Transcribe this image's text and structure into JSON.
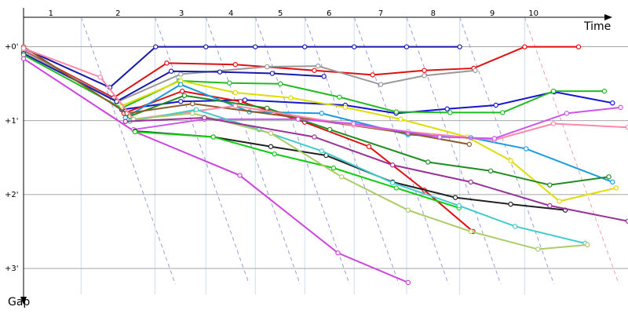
{
  "chart_data": {
    "type": "line",
    "x_label": "Time",
    "y_label": "Gap",
    "xlim": [
      0,
      8.19
    ],
    "ylim": [
      -0.4,
      3.51
    ],
    "xticks": [
      {
        "value": 0.37,
        "label": "1"
      },
      {
        "value": 1.28,
        "label": "2"
      },
      {
        "value": 2.14,
        "label": "3"
      },
      {
        "value": 2.81,
        "label": "4"
      },
      {
        "value": 3.48,
        "label": "5"
      },
      {
        "value": 4.14,
        "label": "6"
      },
      {
        "value": 4.84,
        "label": "7"
      },
      {
        "value": 5.55,
        "label": "8"
      },
      {
        "value": 6.35,
        "label": "9"
      },
      {
        "value": 6.91,
        "label": "10"
      }
    ],
    "xgrid": [
      0.78,
      1.78,
      2.47,
      3.14,
      3.81,
      4.48,
      5.19,
      5.91,
      6.79
    ],
    "yticks": [
      {
        "value": 0,
        "label": "+0'"
      },
      {
        "value": 1,
        "label": "+1'"
      },
      {
        "value": 2,
        "label": "+2'"
      },
      {
        "value": 3,
        "label": "+3'"
      }
    ],
    "grid": true,
    "series": [
      {
        "color": "#1a1aaa",
        "x": [
          0,
          1.17,
          1.79,
          2.47,
          3.14,
          3.81,
          4.48,
          5.19,
          5.91
        ],
        "values": [
          0.02,
          0.55,
          0,
          0,
          0,
          0,
          0,
          0,
          0
        ]
      },
      {
        "color": "#e01010",
        "x": [
          0,
          1.22,
          1.94,
          2.87,
          3.94,
          4.73,
          5.43,
          6.1,
          6.79,
          7.52
        ],
        "values": [
          0.05,
          0.69,
          0.22,
          0.24,
          0.32,
          0.38,
          0.32,
          0.29,
          0,
          0
        ]
      },
      {
        "color": "#999999",
        "x": [
          0,
          1.28,
          2.13,
          3.3,
          3.99,
          4.84,
          5.43,
          6.12
        ],
        "values": [
          0.06,
          0.74,
          0.37,
          0.27,
          0.26,
          0.51,
          0.39,
          0.32
        ]
      },
      {
        "color": "#1a1aaa",
        "x": [
          0,
          1.26,
          2.0,
          2.66,
          3.37,
          4.07
        ],
        "values": [
          0.09,
          0.74,
          0.33,
          0.34,
          0.36,
          0.4
        ]
      },
      {
        "color": "#1515d0",
        "x": [
          1.33,
          2.13,
          3.0,
          4.36,
          5.05,
          5.74,
          6.4,
          7.19,
          7.98
        ],
        "values": [
          0.85,
          0.74,
          0.72,
          0.79,
          0.9,
          0.84,
          0.79,
          0.61,
          0.76
        ]
      },
      {
        "color": "#22bb22",
        "x": [
          0,
          1.33,
          2.11,
          2.79,
          3.48,
          4.28,
          5.05,
          5.78,
          6.49,
          7.18,
          7.87
        ],
        "values": [
          0.11,
          0.83,
          0.46,
          0.49,
          0.5,
          0.68,
          0.88,
          0.89,
          0.89,
          0.6,
          0.6
        ]
      },
      {
        "color": "#dddd00",
        "x": [
          1.33,
          2.13,
          2.87,
          3.62,
          4.36,
          5.11,
          6.01,
          6.6,
          7.26,
          8.03
        ],
        "values": [
          0.8,
          0.46,
          0.62,
          0.69,
          0.82,
          0.98,
          1.22,
          1.54,
          2.09,
          1.91
        ]
      },
      {
        "color": "#dd1111",
        "x": [
          1.36,
          2.15,
          2.94,
          3.81,
          4.68,
          5.43,
          6.09
        ],
        "values": [
          0.9,
          0.6,
          0.74,
          1.02,
          1.35,
          1.94,
          2.5
        ]
      },
      {
        "color": "#1a9be0",
        "x": [
          1.38,
          2.13,
          3.06,
          4.04,
          5.21,
          6.06,
          6.81,
          7.98
        ],
        "values": [
          0.96,
          0.51,
          0.88,
          0.9,
          1.19,
          1.23,
          1.38,
          1.83
        ]
      },
      {
        "color": "#228b22",
        "x": [
          1.44,
          2.18,
          3.3,
          4.15,
          5.48,
          6.33,
          7.13,
          7.93
        ],
        "values": [
          0.94,
          0.66,
          0.83,
          1.12,
          1.56,
          1.68,
          1.87,
          1.76
        ]
      },
      {
        "color": "#8b5a2b",
        "x": [
          0,
          1.4,
          2.29,
          3.72,
          5.21,
          6.04
        ],
        "values": [
          0,
          0.9,
          0.77,
          0.96,
          1.17,
          1.32
        ]
      },
      {
        "color": "#ff88aa",
        "x": [
          0,
          1.04,
          1.49,
          2.87,
          4.47,
          5.21,
          6.38,
          7.18,
          8.19
        ],
        "values": [
          0.02,
          0.41,
          0.98,
          0.8,
          1.06,
          1.15,
          1.26,
          1.04,
          1.09
        ]
      },
      {
        "color": "#cc44dd",
        "x": [
          0,
          1.51,
          2.93,
          4.26,
          5.21
        ],
        "values": [
          0.16,
          1.15,
          1.74,
          2.79,
          3.19
        ]
      },
      {
        "color": "#cc55ee",
        "x": [
          1.49,
          2.45,
          3.72,
          4.47,
          5.64,
          6.38,
          7.36,
          8.09
        ],
        "values": [
          1.12,
          0.98,
          0.98,
          1.04,
          1.22,
          1.24,
          0.9,
          0.82
        ]
      },
      {
        "color": "#222222",
        "x": [
          1.51,
          2.57,
          3.35,
          4.1,
          5.0,
          5.85,
          6.6,
          7.34
        ],
        "values": [
          1.14,
          1.22,
          1.35,
          1.47,
          1.83,
          2.04,
          2.13,
          2.21
        ]
      },
      {
        "color": "#11cc11",
        "x": [
          1.51,
          2.57,
          3.4,
          4.2,
          5.05,
          5.9
        ],
        "values": [
          1.15,
          1.22,
          1.45,
          1.64,
          1.91,
          2.18
        ]
      },
      {
        "color": "#44cccc",
        "x": [
          1.44,
          2.34,
          3.19,
          4.04,
          5.0,
          5.9,
          6.66,
          7.61
        ],
        "values": [
          1.01,
          0.85,
          1.12,
          1.41,
          1.84,
          2.15,
          2.43,
          2.66
        ]
      },
      {
        "color": "#aacc66",
        "x": [
          1.49,
          2.29,
          3.35,
          4.31,
          5.21,
          6.06,
          6.97,
          7.64
        ],
        "values": [
          0.98,
          0.9,
          1.17,
          1.76,
          2.21,
          2.5,
          2.74,
          2.68
        ]
      },
      {
        "color": "#993399",
        "x": [
          1.38,
          2.45,
          3.94,
          5.0,
          6.06,
          7.13,
          8.19
        ],
        "values": [
          1.01,
          0.96,
          1.22,
          1.6,
          1.83,
          2.15,
          2.36
        ]
      }
    ]
  }
}
